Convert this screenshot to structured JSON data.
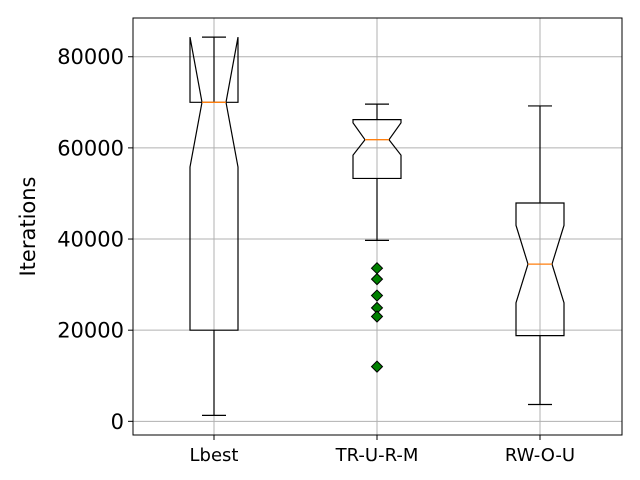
{
  "chart_data": {
    "type": "boxplot",
    "notched": true,
    "ylabel": "Iterations",
    "xlabel": "",
    "title": "",
    "ylim": [
      -3000,
      88500
    ],
    "yticks": [
      0,
      20000,
      40000,
      60000,
      80000
    ],
    "ytick_labels": [
      "0",
      "20000",
      "40000",
      "60000",
      "80000"
    ],
    "grid": true,
    "categories": [
      "Lbest",
      "TR-U-R-M",
      "RW-O-U"
    ],
    "boxes": [
      {
        "label": "Lbest",
        "whislo": 1300,
        "q1": 20000,
        "notch_low": 55800,
        "med": 70000,
        "notch_high": 84300,
        "q3": 70000,
        "whishi": 84300,
        "fliers": []
      },
      {
        "label": "TR-U-R-M",
        "whislo": 39700,
        "q1": 53300,
        "notch_low": 58400,
        "med": 61800,
        "notch_high": 65500,
        "q3": 66200,
        "whishi": 69600,
        "fliers": [
          33600,
          31200,
          27600,
          24900,
          23000,
          12000
        ]
      },
      {
        "label": "RW-O-U",
        "whislo": 3700,
        "q1": 18800,
        "notch_low": 26000,
        "med": 34500,
        "notch_high": 43000,
        "q3": 47900,
        "whishi": 69200,
        "fliers": []
      }
    ],
    "colors": {
      "box": "#000000",
      "median": "#ff7f0e",
      "flier": "#008000",
      "grid": "#b0b0b0"
    }
  }
}
